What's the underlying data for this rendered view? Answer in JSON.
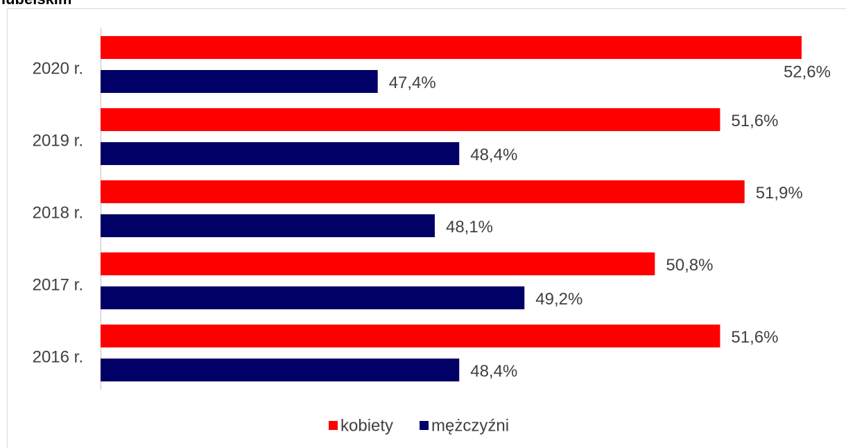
{
  "chart_data": {
    "type": "hbar",
    "title": "lubelskim",
    "categories": [
      "2020 r.",
      "2019 r.",
      "2018 r.",
      "2017 r.",
      "2016 r."
    ],
    "series": [
      {
        "name": "kobiety",
        "color": "#ff0000",
        "values": [
          52.6,
          51.6,
          51.9,
          50.8,
          51.6
        ],
        "value_labels": [
          "52,6%",
          "51,6%",
          "51,9%",
          "50,8%",
          "51,6%"
        ]
      },
      {
        "name": "mężczyźni",
        "color": "#000066",
        "values": [
          47.4,
          48.4,
          48.1,
          49.2,
          48.4
        ],
        "value_labels": [
          "47,4%",
          "48,4%",
          "48,1%",
          "49,2%",
          "48,4%"
        ]
      }
    ],
    "xlim": [
      44,
      53
    ],
    "legend": "bottom"
  }
}
